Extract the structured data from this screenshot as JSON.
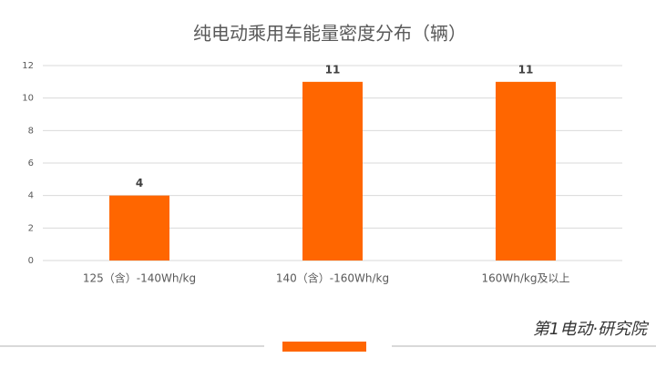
{
  "chart_data": {
    "type": "bar",
    "title": "纯电动乘用车能量密度分布（辆）",
    "categories": [
      "125（含）-140Wh/kg",
      "140（含）-160Wh/kg",
      "160Wh/kg及以上"
    ],
    "values": [
      4,
      11,
      11
    ],
    "color": "#ff6600",
    "ylim": [
      0,
      12
    ],
    "yticks": [
      0,
      2,
      4,
      6,
      8,
      10,
      12
    ],
    "grid": true,
    "data_labels": true
  },
  "watermark": "第1电动·研究院"
}
